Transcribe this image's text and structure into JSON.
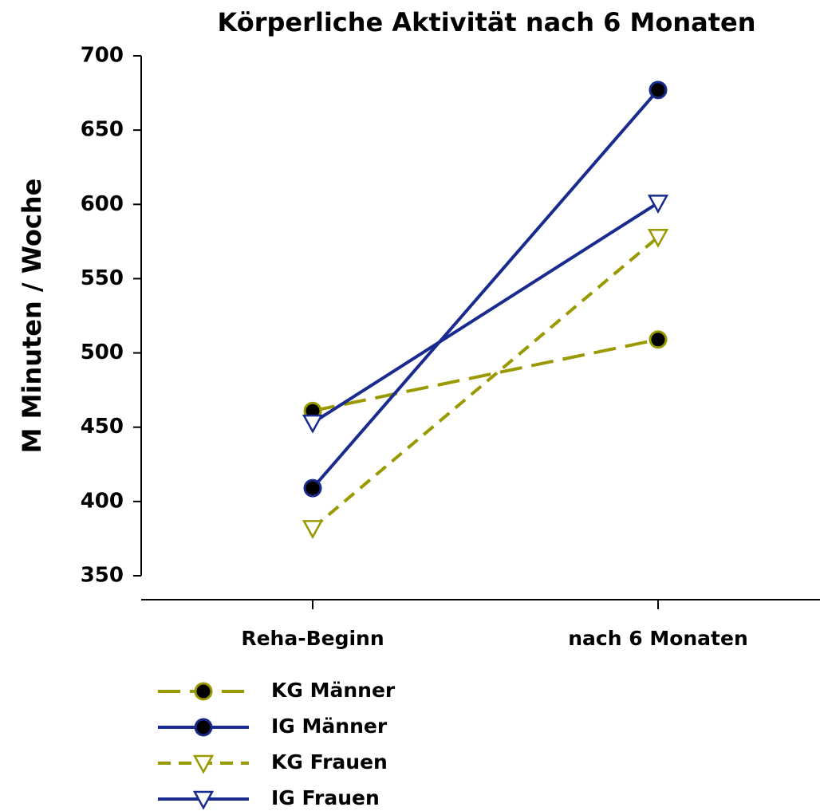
{
  "chart_data": {
    "type": "line",
    "title": "Körperliche Aktivität nach 6 Monaten",
    "y_label": "M Minuten / Woche",
    "categories": [
      "Reha-Beginn",
      "nach 6 Monaten"
    ],
    "series": [
      {
        "name": "KG Männer",
        "color": "#999900",
        "marker": "circle",
        "dash": "long",
        "values": [
          461,
          509
        ]
      },
      {
        "name": "IG Männer",
        "color": "#1a2b8f",
        "marker": "circle",
        "dash": "solid",
        "values": [
          409,
          677
        ]
      },
      {
        "name": "KG Frauen",
        "color": "#999900",
        "marker": "triangle",
        "dash": "short",
        "values": [
          382,
          578
        ]
      },
      {
        "name": "IG Frauen",
        "color": "#1a2b8f",
        "marker": "triangle",
        "dash": "solid",
        "values": [
          453,
          601
        ]
      }
    ],
    "ylim": [
      350,
      700
    ],
    "yticks": [
      350,
      400,
      450,
      500,
      550,
      600,
      650,
      700
    ],
    "grid": false,
    "legend": "bottom-left"
  }
}
